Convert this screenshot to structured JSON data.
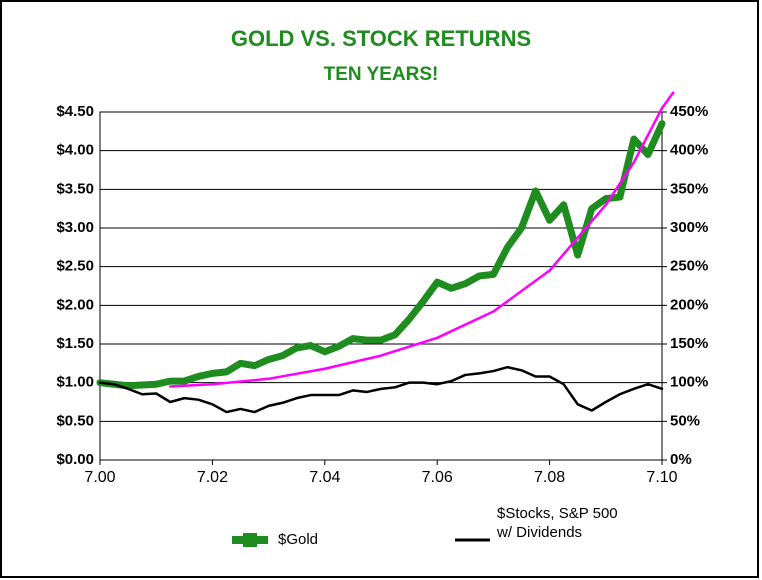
{
  "chart_data": {
    "type": "line",
    "title": "GOLD VS. STOCK RETURNS",
    "subtitle": "TEN YEARS!",
    "xlim": [
      7.0,
      7.1
    ],
    "xticks": [
      {
        "value": 7.0,
        "label": "7.00"
      },
      {
        "value": 7.02,
        "label": "7.02"
      },
      {
        "value": 7.04,
        "label": "7.04"
      },
      {
        "value": 7.06,
        "label": "7.06"
      },
      {
        "value": 7.08,
        "label": "7.08"
      },
      {
        "value": 7.1,
        "label": "7.10"
      }
    ],
    "ylim": [
      0,
      4.5
    ],
    "yticks": [
      {
        "value": 0,
        "label": "$0.00"
      },
      {
        "value": 0.5,
        "label": "$0.50"
      },
      {
        "value": 1,
        "label": "$1.00"
      },
      {
        "value": 1.5,
        "label": "$1.50"
      },
      {
        "value": 2,
        "label": "$2.00"
      },
      {
        "value": 2.5,
        "label": "$2.50"
      },
      {
        "value": 3,
        "label": "$3.00"
      },
      {
        "value": 3.5,
        "label": "$3.50"
      },
      {
        "value": 4,
        "label": "$4.00"
      },
      {
        "value": 4.5,
        "label": "$4.50"
      }
    ],
    "y2lim": [
      0,
      450
    ],
    "y2ticks": [
      {
        "value": 0,
        "label": "0%"
      },
      {
        "value": 50,
        "label": "50%"
      },
      {
        "value": 100,
        "label": "100%"
      },
      {
        "value": 150,
        "label": "150%"
      },
      {
        "value": 200,
        "label": "200%"
      },
      {
        "value": 250,
        "label": "250%"
      },
      {
        "value": 300,
        "label": "300%"
      },
      {
        "value": 350,
        "label": "350%"
      },
      {
        "value": 400,
        "label": "400%"
      },
      {
        "value": 450,
        "label": "450%"
      }
    ],
    "grid": true,
    "legend": "bottom",
    "x": [
      7.0,
      7.0025,
      7.005,
      7.0075,
      7.01,
      7.0125,
      7.015,
      7.0175,
      7.02,
      7.0225,
      7.025,
      7.0275,
      7.03,
      7.0325,
      7.035,
      7.0375,
      7.04,
      7.0425,
      7.045,
      7.0475,
      7.05,
      7.0525,
      7.055,
      7.0575,
      7.06,
      7.0625,
      7.065,
      7.0675,
      7.07,
      7.0725,
      7.075,
      7.0775,
      7.08,
      7.0825,
      7.085,
      7.0875,
      7.09,
      7.0925,
      7.095,
      7.0975,
      7.1
    ],
    "series": [
      {
        "name": "$Gold",
        "color": "#1e8c1e",
        "values": [
          1.0,
          0.98,
          0.96,
          0.97,
          0.98,
          1.02,
          1.02,
          1.08,
          1.12,
          1.14,
          1.25,
          1.22,
          1.3,
          1.35,
          1.45,
          1.48,
          1.4,
          1.47,
          1.57,
          1.55,
          1.55,
          1.62,
          1.82,
          2.05,
          2.3,
          2.22,
          2.28,
          2.38,
          2.4,
          2.75,
          3.0,
          3.48,
          3.1,
          3.3,
          2.65,
          3.25,
          3.38,
          3.4,
          4.15,
          3.95,
          4.35
        ]
      },
      {
        "name": "$Stocks, S&P 500 w/ Dividends",
        "color": "#000000",
        "axis": "y2",
        "values": [
          100,
          98,
          92,
          85,
          86,
          75,
          80,
          78,
          72,
          62,
          66,
          62,
          70,
          74,
          80,
          84,
          84,
          84,
          90,
          88,
          92,
          94,
          100,
          100,
          98,
          102,
          110,
          112,
          115,
          120,
          116,
          108,
          108,
          98,
          72,
          64,
          75,
          85,
          92,
          98,
          92
        ]
      },
      {
        "color": "#ff00ff",
        "x": [
          7.0125,
          7.02,
          7.03,
          7.04,
          7.05,
          7.06,
          7.07,
          7.08,
          7.09,
          7.095,
          7.1,
          7.102
        ],
        "values": [
          0.95,
          0.98,
          1.05,
          1.18,
          1.35,
          1.58,
          1.92,
          2.45,
          3.3,
          3.85,
          4.55,
          4.75
        ]
      }
    ]
  }
}
